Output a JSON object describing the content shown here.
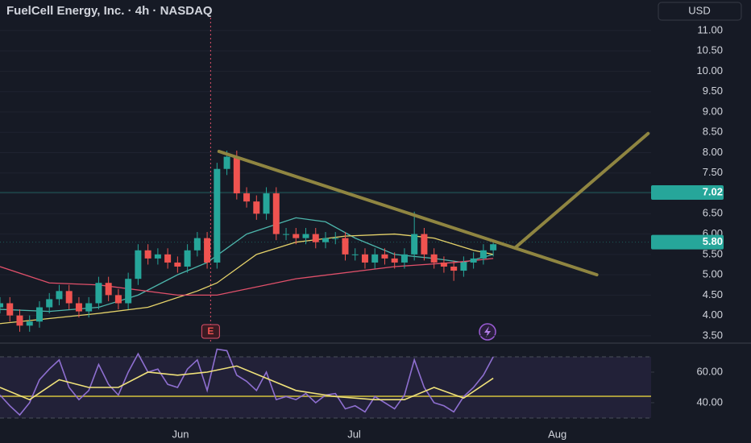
{
  "chart_data": [
    {
      "type": "candlestick",
      "title": "FuelCell Energy, Inc. · 4h · NASDAQ",
      "currency": "USD",
      "up_color": "#26a69a",
      "down_color": "#ef5350",
      "xlim": [
        0,
        66
      ],
      "ylim": [
        3.34,
        11.75
      ],
      "grid": true,
      "yticks": [
        {
          "value": 3.5,
          "label": "3.50"
        },
        {
          "value": 4,
          "label": "4.00"
        },
        {
          "value": 4.5,
          "label": "4.50"
        },
        {
          "value": 5,
          "label": "5.00"
        },
        {
          "value": 5.5,
          "label": "5.50"
        },
        {
          "value": 6,
          "label": "6.00"
        },
        {
          "value": 6.5,
          "label": "6.50"
        },
        {
          "value": 7,
          "label": "7.00"
        },
        {
          "value": 7.5,
          "label": "7.50"
        },
        {
          "value": 8,
          "label": "8.00"
        },
        {
          "value": 8.5,
          "label": "8.50"
        },
        {
          "value": 9,
          "label": "9.00"
        },
        {
          "value": 9.5,
          "label": "9.50"
        },
        {
          "value": 10,
          "label": "10.00"
        },
        {
          "value": 10.5,
          "label": "10.50"
        },
        {
          "value": 11,
          "label": "11.00"
        }
      ],
      "x": [
        0,
        1,
        2,
        3,
        4,
        5,
        6,
        7,
        8,
        9,
        10,
        11,
        12,
        13,
        14,
        15,
        16,
        17,
        18,
        19,
        20,
        21,
        22,
        23,
        24,
        25,
        26,
        27,
        28,
        29,
        30,
        31,
        32,
        33,
        34,
        35,
        36,
        37,
        38,
        39,
        40,
        41,
        42,
        43,
        44,
        45,
        46,
        47,
        48,
        49,
        50
      ],
      "open": [
        4.2,
        4.3,
        4.0,
        3.75,
        3.85,
        4.2,
        4.4,
        4.6,
        4.3,
        4.1,
        4.3,
        4.8,
        4.5,
        4.3,
        4.9,
        5.6,
        5.4,
        5.5,
        5.3,
        5.2,
        5.6,
        5.9,
        5.3,
        7.6,
        7.9,
        7.0,
        6.8,
        6.5,
        7.0,
        6.0,
        6.0,
        5.9,
        6.0,
        5.8,
        5.9,
        5.9,
        5.5,
        5.5,
        5.3,
        5.5,
        5.4,
        5.3,
        5.5,
        6.0,
        5.5,
        5.3,
        5.2,
        5.1,
        5.3,
        5.4,
        5.6
      ],
      "high": [
        4.45,
        4.45,
        4.15,
        4.0,
        4.35,
        4.55,
        4.75,
        4.75,
        4.45,
        4.45,
        4.95,
        4.95,
        4.65,
        5.05,
        5.75,
        5.75,
        5.65,
        5.65,
        5.45,
        5.75,
        6.05,
        6.05,
        7.75,
        8.05,
        8.05,
        7.15,
        6.95,
        7.15,
        7.15,
        6.15,
        6.15,
        6.15,
        6.15,
        6.05,
        6.05,
        6.05,
        5.65,
        5.65,
        5.65,
        5.65,
        5.55,
        5.65,
        6.55,
        6.15,
        5.65,
        5.45,
        5.35,
        5.45,
        5.55,
        5.75,
        5.85
      ],
      "low": [
        4.05,
        3.85,
        3.6,
        3.6,
        3.7,
        4.05,
        4.25,
        4.15,
        3.95,
        3.95,
        4.15,
        4.35,
        4.15,
        4.15,
        4.75,
        5.25,
        5.25,
        5.15,
        5.05,
        5.05,
        5.45,
        5.15,
        5.15,
        7.45,
        6.85,
        6.65,
        6.35,
        6.35,
        5.85,
        5.85,
        5.75,
        5.75,
        5.65,
        5.65,
        5.75,
        5.35,
        5.35,
        5.15,
        5.15,
        5.25,
        5.15,
        5.15,
        5.35,
        5.35,
        5.15,
        5.05,
        4.85,
        4.95,
        5.15,
        5.25,
        5.45
      ],
      "close": [
        4.3,
        4.0,
        3.75,
        3.85,
        4.2,
        4.4,
        4.6,
        4.3,
        4.1,
        4.3,
        4.8,
        4.5,
        4.3,
        4.9,
        5.6,
        5.4,
        5.5,
        5.3,
        5.2,
        5.6,
        5.9,
        5.3,
        7.6,
        7.9,
        7.0,
        6.8,
        6.5,
        7.0,
        6.0,
        6.0,
        5.9,
        6.0,
        5.8,
        5.9,
        5.9,
        5.5,
        5.5,
        5.3,
        5.5,
        5.4,
        5.3,
        5.5,
        6.0,
        5.5,
        5.3,
        5.2,
        5.1,
        5.3,
        5.4,
        5.6,
        5.75
      ],
      "moving_averages": [
        {
          "color": "#4db6ac",
          "x": [
            0,
            5,
            10,
            14,
            18,
            21,
            25,
            30,
            33,
            36,
            40,
            44,
            47,
            50
          ],
          "values": [
            4.15,
            4.1,
            4.2,
            4.5,
            5.0,
            5.3,
            6.0,
            6.4,
            6.3,
            5.9,
            5.5,
            5.4,
            5.3,
            5.5
          ]
        },
        {
          "color": "#e6d36a",
          "x": [
            0,
            10,
            15,
            20,
            22,
            26,
            30,
            35,
            40,
            44,
            48,
            50
          ],
          "values": [
            3.8,
            4.05,
            4.2,
            4.6,
            4.8,
            5.5,
            5.8,
            5.95,
            6.0,
            5.9,
            5.6,
            5.5
          ]
        },
        {
          "color": "#e0506a",
          "x": [
            0,
            5,
            10,
            18,
            22,
            30,
            40,
            46,
            50
          ],
          "values": [
            5.2,
            4.8,
            4.75,
            4.5,
            4.5,
            4.9,
            5.2,
            5.3,
            5.4
          ]
        }
      ],
      "trendlines": [
        {
          "color": "#8f8541",
          "x": [
            22.2,
            60.5
          ],
          "values": [
            8.03,
            5.0
          ]
        },
        {
          "color": "#8f8541",
          "x": [
            52.2,
            65.7
          ],
          "values": [
            5.66,
            8.47
          ]
        }
      ],
      "levels": [
        {
          "value": 7.02,
          "label": "7.02",
          "color": "#26a69a"
        },
        {
          "value": 5.8,
          "label": "5.80",
          "color": "#26a69a"
        }
      ],
      "events": [
        {
          "x": 21.35,
          "label": "E"
        }
      ]
    },
    {
      "type": "line",
      "xlim": [
        0,
        66
      ],
      "ylim": [
        26.3,
        77.9
      ],
      "yticks": [
        {
          "value": 40,
          "label": "40.00"
        },
        {
          "value": 60,
          "label": "60.00"
        }
      ],
      "band": [
        30,
        70
      ],
      "level": 44.2,
      "level_color": "#a89a3c",
      "xticks": [
        {
          "value": 18.3,
          "label": "Jun"
        },
        {
          "value": 35.9,
          "label": "Jul"
        },
        {
          "value": 56.5,
          "label": "Aug"
        }
      ],
      "series": [
        {
          "color": "#8e6fd0",
          "x": [
            0,
            1,
            2,
            3,
            4,
            5,
            6,
            7,
            8,
            9,
            10,
            11,
            12,
            13,
            14,
            15,
            16,
            17,
            18,
            19,
            20,
            21,
            22,
            23,
            24,
            25,
            26,
            27,
            28,
            29,
            30,
            31,
            32,
            33,
            34,
            35,
            36,
            37,
            38,
            39,
            40,
            41,
            42,
            43,
            44,
            45,
            46,
            47,
            48,
            49,
            50
          ],
          "values": [
            45,
            38,
            32,
            40,
            55,
            62,
            68,
            50,
            42,
            48,
            65,
            52,
            45,
            60,
            72,
            60,
            62,
            52,
            50,
            62,
            68,
            48,
            75,
            74,
            58,
            54,
            48,
            60,
            42,
            44,
            42,
            46,
            40,
            45,
            46,
            36,
            38,
            34,
            44,
            40,
            36,
            45,
            68,
            50,
            40,
            38,
            34,
            44,
            50,
            58,
            70
          ]
        },
        {
          "color": "#f0e27a",
          "x": [
            0,
            3,
            6,
            9,
            12,
            15,
            18,
            21,
            24,
            27,
            30,
            34,
            38,
            41,
            44,
            47,
            50
          ],
          "values": [
            50,
            42,
            55,
            50,
            50,
            60,
            58,
            60,
            64,
            56,
            48,
            44,
            42,
            42,
            50,
            43,
            56
          ]
        }
      ]
    }
  ]
}
